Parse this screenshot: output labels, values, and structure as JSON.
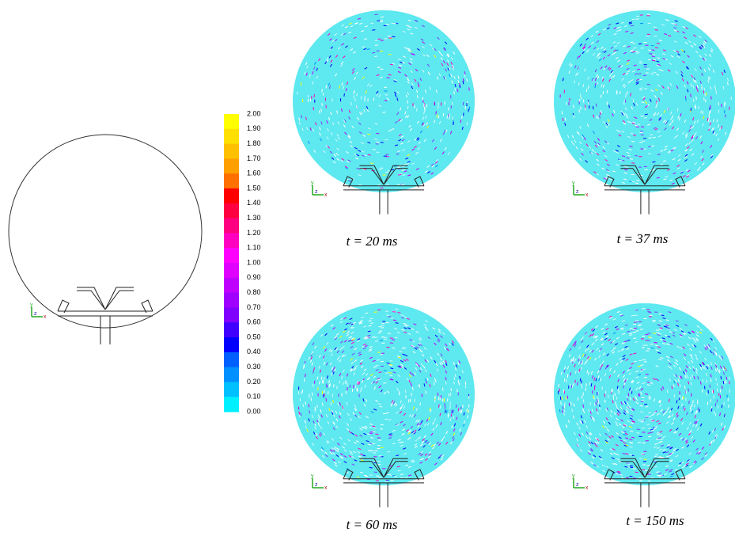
{
  "colorbar": {
    "labels": [
      "2.00",
      "1.90",
      "1.80",
      "1.70",
      "1.60",
      "1.50",
      "1.40",
      "1.30",
      "1.20",
      "1.10",
      "1.00",
      "0.90",
      "0.80",
      "0.70",
      "0.60",
      "0.50",
      "0.40",
      "0.30",
      "0.20",
      "0.10",
      "0.00"
    ],
    "colors": [
      "#ffff00",
      "#ffe000",
      "#ffc000",
      "#ffa000",
      "#ff7000",
      "#ff0000",
      "#ff0040",
      "#ff0080",
      "#ff00c0",
      "#ff00ff",
      "#e000ff",
      "#c000ff",
      "#a000ff",
      "#8000ff",
      "#4000ff",
      "#0000ff",
      "#0060ff",
      "#0090ff",
      "#00c0ff",
      "#00f0ff"
    ]
  },
  "panels": [
    {
      "caption": "t = 20 ms"
    },
    {
      "caption": "t = 37 ms"
    },
    {
      "caption": "t = 60 ms"
    },
    {
      "caption": "t = 150 ms"
    }
  ],
  "axis_triad": {
    "y": "y",
    "z": "z",
    "x": "x"
  }
}
